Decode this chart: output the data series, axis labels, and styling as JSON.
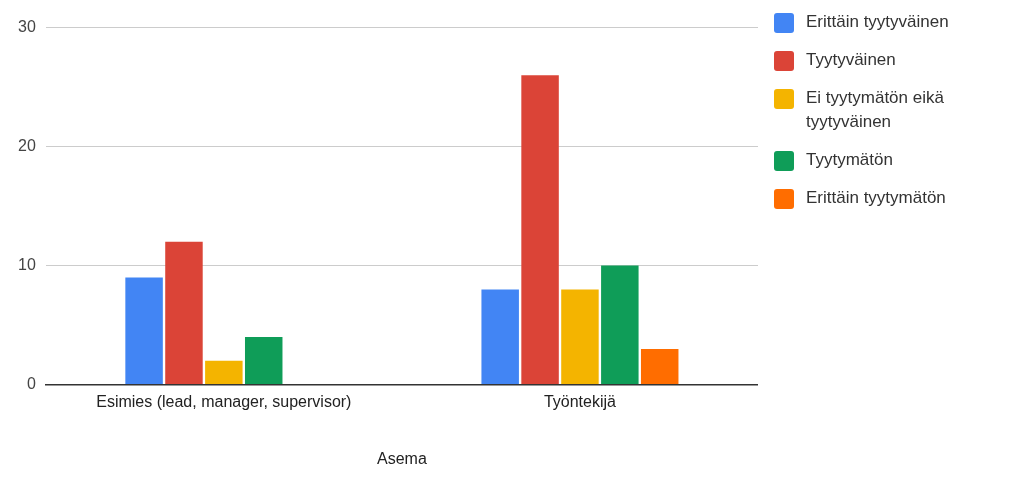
{
  "chart_data": {
    "type": "bar",
    "xlabel": "Asema",
    "categories": [
      "Esimies (lead, manager, supervisor)",
      "Työntekijä"
    ],
    "series": [
      {
        "name": "Erittäin tyytyväinen",
        "color": "#4285f4",
        "values": [
          9,
          8
        ]
      },
      {
        "name": "Tyytyväinen",
        "color": "#db4437",
        "values": [
          12,
          26
        ]
      },
      {
        "name": "Ei tyytymätön eikä tyytyväinen",
        "color": "#f4b400",
        "values": [
          2,
          8
        ]
      },
      {
        "name": "Tyytymätön",
        "color": "#0f9d58",
        "values": [
          4,
          10
        ]
      },
      {
        "name": "Erittäin tyytymätön",
        "color": "#ff6d00",
        "values": [
          0,
          3
        ]
      }
    ],
    "ylim": [
      0,
      30
    ],
    "yticks": [
      0,
      10,
      20,
      30
    ],
    "grid": "y",
    "legend": "right"
  }
}
